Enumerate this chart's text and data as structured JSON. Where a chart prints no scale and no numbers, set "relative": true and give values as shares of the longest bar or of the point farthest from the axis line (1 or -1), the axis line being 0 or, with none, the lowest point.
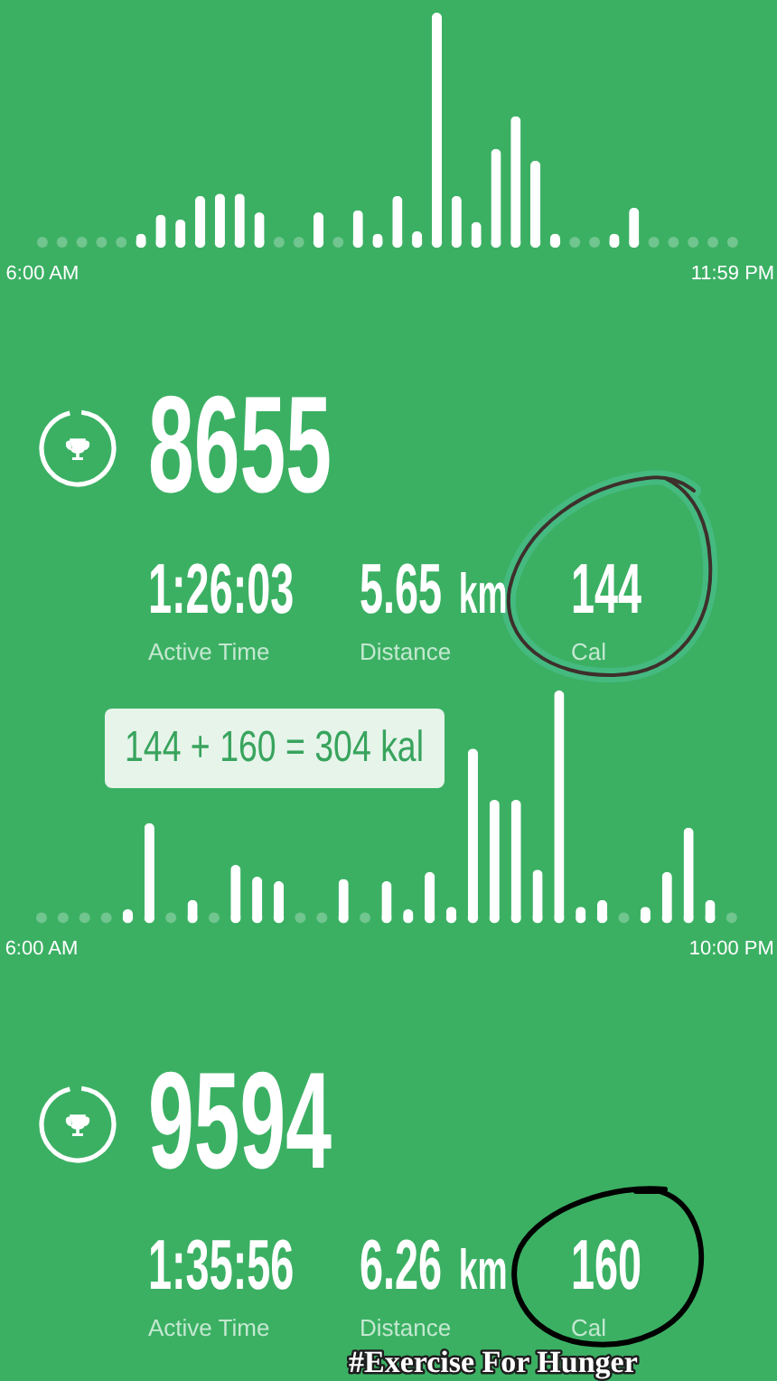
{
  "chart_data": [
    {
      "type": "bar",
      "relative": true,
      "color": "#ffffff",
      "categories": [
        "6:00 AM",
        null,
        null,
        null,
        null,
        null,
        null,
        null,
        null,
        null,
        null,
        null,
        null,
        null,
        null,
        null,
        null,
        null,
        null,
        null,
        null,
        null,
        null,
        null,
        null,
        null,
        null,
        null,
        null,
        null,
        null,
        null,
        null,
        null,
        null,
        "11:59 PM"
      ],
      "values": [
        0,
        0,
        0,
        0,
        0,
        0.06,
        0.14,
        0.12,
        0.22,
        0.23,
        0.23,
        0.15,
        0,
        0,
        0.15,
        0,
        0.16,
        0.06,
        0.22,
        0.07,
        1,
        0.22,
        0.11,
        0.42,
        0.56,
        0.37,
        0.06,
        0,
        0,
        0.06,
        0.17,
        0,
        0,
        0,
        0,
        0
      ]
    },
    {
      "type": "other",
      "title": "8655",
      "annotations": [
        "1:26:03",
        "Active Time",
        "5.65 km",
        "Distance",
        "144",
        "Cal"
      ]
    },
    {
      "type": "bar",
      "relative": true,
      "color": "#ffffff",
      "categories": [
        "6:00 AM",
        null,
        null,
        null,
        null,
        null,
        null,
        null,
        null,
        null,
        null,
        null,
        null,
        null,
        null,
        null,
        null,
        null,
        null,
        null,
        null,
        null,
        null,
        null,
        null,
        null,
        null,
        null,
        null,
        null,
        null,
        null,
        "10:00 PM"
      ],
      "values": [
        0,
        0,
        0,
        0,
        0.06,
        0.43,
        0,
        0.1,
        0,
        0.25,
        0.2,
        0.18,
        0,
        0,
        0.19,
        0,
        0.18,
        0.06,
        0.22,
        0.07,
        0.75,
        0.53,
        0.53,
        0.23,
        1,
        0.07,
        0.1,
        0,
        0.07,
        0.22,
        0.41,
        0.1,
        0
      ],
      "annotations": [
        "144 + 160 = 304 kal"
      ]
    },
    {
      "type": "other",
      "title": "9594",
      "annotations": [
        "1:35:56",
        "Active Time",
        "6.26 km",
        "Distance",
        "160",
        "Cal",
        "#Exercise For Hunger"
      ]
    }
  ]
}
